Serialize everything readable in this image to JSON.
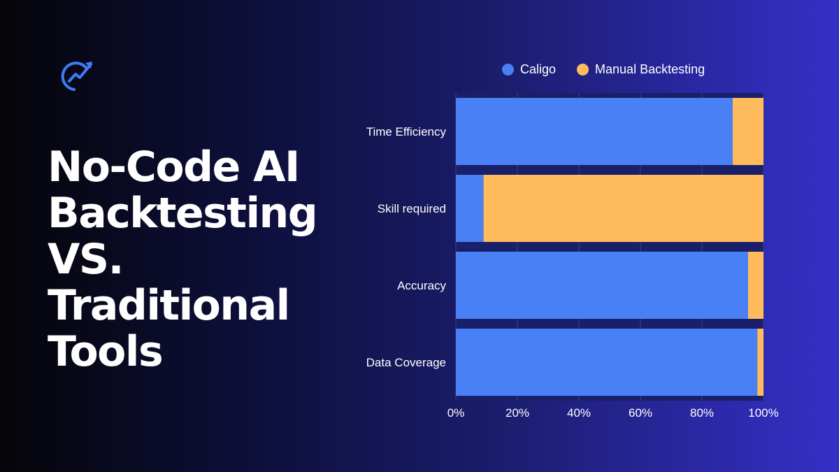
{
  "headline": {
    "lines": [
      "No-Code AI",
      "Backtesting",
      "VS.",
      "Traditional",
      "Tools"
    ]
  },
  "logo": {
    "icon": "chart-growth-arrow-icon",
    "color": "#3f7cf5"
  },
  "colors": {
    "caligo": "#4a80f6",
    "manual": "#ffbb5c",
    "gridline": "#3a3f8a",
    "band": "#1a1f6a"
  },
  "chart_data": {
    "type": "bar",
    "orientation": "horizontal",
    "stacked": true,
    "normalized": true,
    "categories": [
      "Time Efficiency",
      "Skill required",
      "Accuracy",
      "Data Coverage"
    ],
    "series": [
      {
        "name": "Caligo",
        "values": [
          90,
          9,
          95,
          98
        ]
      },
      {
        "name": "Manual Backtesting",
        "values": [
          10,
          91,
          5,
          2
        ]
      }
    ],
    "xticks": [
      "0%",
      "20%",
      "40%",
      "60%",
      "80%",
      "100%"
    ],
    "xlim": [
      0,
      100
    ],
    "legend_position": "top",
    "grid": true
  }
}
